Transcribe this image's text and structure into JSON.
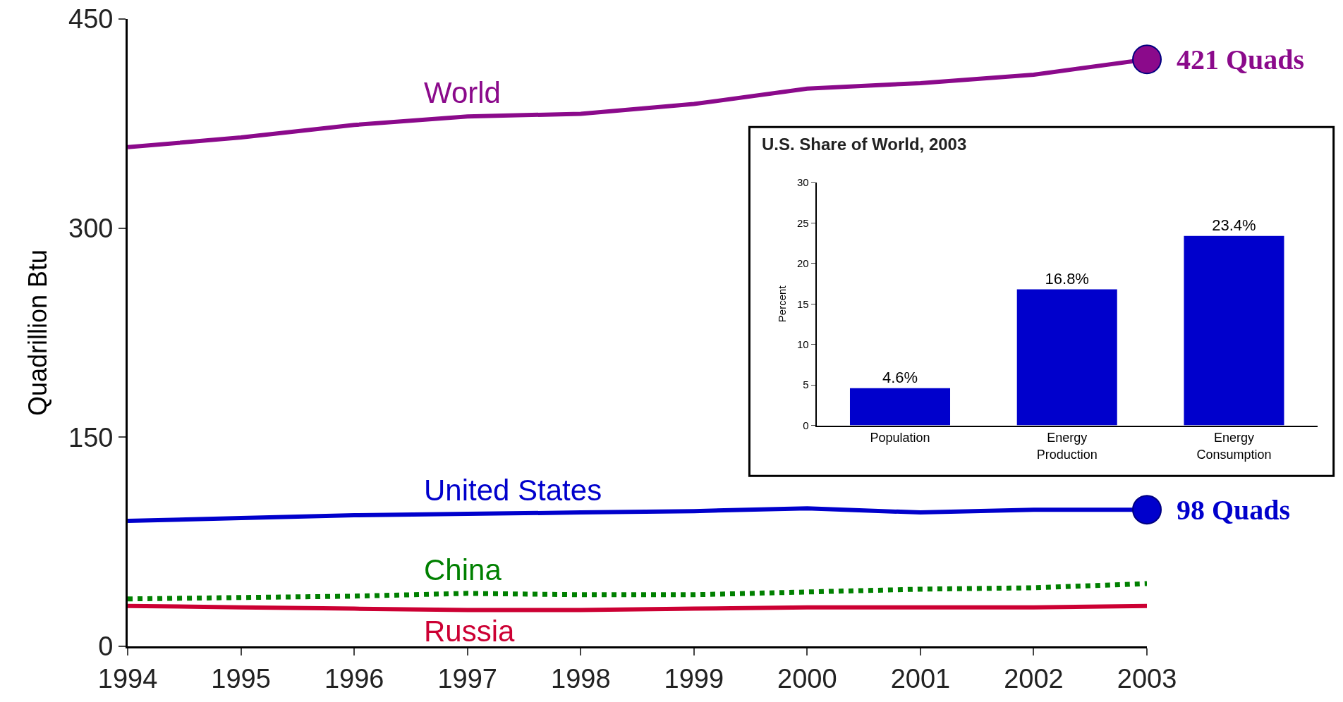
{
  "chart_data": [
    {
      "type": "line",
      "ylabel": "Quadrillion Btu",
      "x": [
        1994,
        1995,
        1996,
        1997,
        1998,
        1999,
        2000,
        2001,
        2002,
        2003
      ],
      "xlim": [
        1994,
        2003
      ],
      "xticks": [
        1994,
        1995,
        1996,
        1997,
        1998,
        1999,
        2000,
        2001,
        2002,
        2003
      ],
      "ylim": [
        0,
        450
      ],
      "yticks": [
        0,
        150,
        300,
        450
      ],
      "grid": false,
      "series": [
        {
          "name": "World",
          "color": "#8b0a8b",
          "values": [
            358,
            365,
            374,
            380,
            382,
            389,
            400,
            404,
            410,
            421
          ]
        },
        {
          "name": "United States",
          "color": "#0000cc",
          "values": [
            90,
            92,
            94,
            95,
            96,
            97,
            99,
            96,
            98,
            98
          ]
        },
        {
          "name": "China",
          "color": "#008000",
          "line_style": "dotted",
          "values": [
            34,
            35,
            36,
            38,
            37,
            37,
            39,
            41,
            42,
            45
          ]
        },
        {
          "name": "Russia",
          "color": "#cc0033",
          "values": [
            29,
            28,
            27,
            26,
            26,
            27,
            28,
            28,
            28,
            29
          ]
        }
      ],
      "annotations": [
        {
          "text": "421 Quads",
          "x": 2003,
          "y": 421
        },
        {
          "text": "98 Quads",
          "x": 2003,
          "y": 98
        }
      ]
    },
    {
      "type": "bar",
      "title": "U.S. Share of World, 2003",
      "ylabel": "Percent",
      "categories": [
        "Population",
        "Energy Production",
        "Energy Consumption"
      ],
      "values": [
        4.6,
        16.8,
        23.4
      ],
      "value_labels": [
        "4.6%",
        "16.8%",
        "23.4%"
      ],
      "color": "#0000cc",
      "ylim": [
        0,
        30
      ],
      "yticks": [
        0,
        5,
        10,
        15,
        20,
        25,
        30
      ],
      "grid": false
    }
  ]
}
